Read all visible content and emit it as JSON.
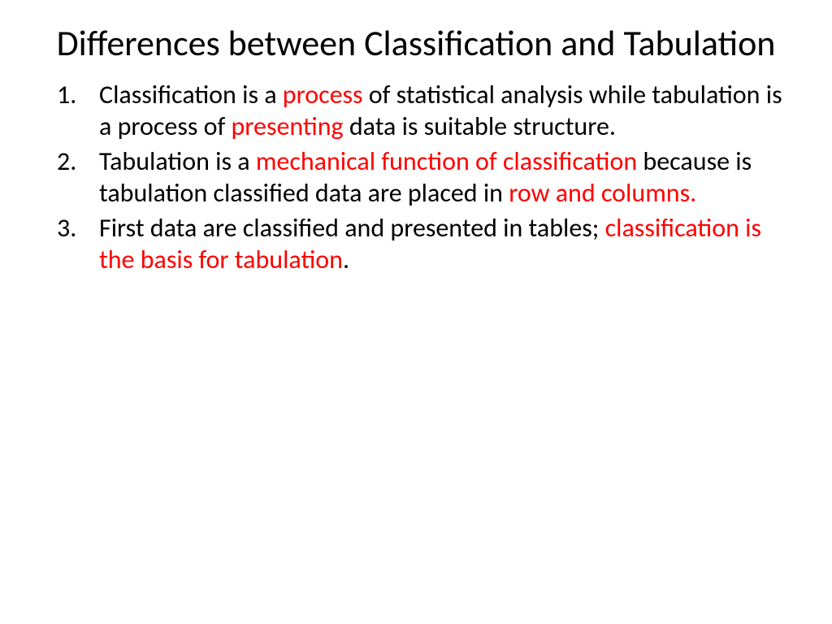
{
  "colors": {
    "background": "#ffffff",
    "text": "#000000",
    "highlight": "#ff0000"
  },
  "typography": {
    "title_fontsize": 44,
    "body_fontsize": 32,
    "font_family": "Calibri"
  },
  "title": "Differences between Classification and Tabulation",
  "items": [
    {
      "segments": [
        {
          "text": "Classification is a ",
          "hl": false
        },
        {
          "text": "process",
          "hl": true
        },
        {
          "text": " of statistical analysis while tabulation is a process of ",
          "hl": false
        },
        {
          "text": "presenting",
          "hl": true
        },
        {
          "text": " data is suitable structure.",
          "hl": false
        }
      ]
    },
    {
      "segments": [
        {
          "text": "Tabulation is a ",
          "hl": false
        },
        {
          "text": "mechanical function of classification",
          "hl": true
        },
        {
          "text": " because is tabulation classified data are placed in ",
          "hl": false
        },
        {
          "text": "row and columns.",
          "hl": true
        }
      ]
    },
    {
      "segments": [
        {
          "text": "First data are classified and presented in tables; ",
          "hl": false
        },
        {
          "text": "classification is the basis for tabulation",
          "hl": true
        },
        {
          "text": ".",
          "hl": false
        }
      ]
    }
  ]
}
